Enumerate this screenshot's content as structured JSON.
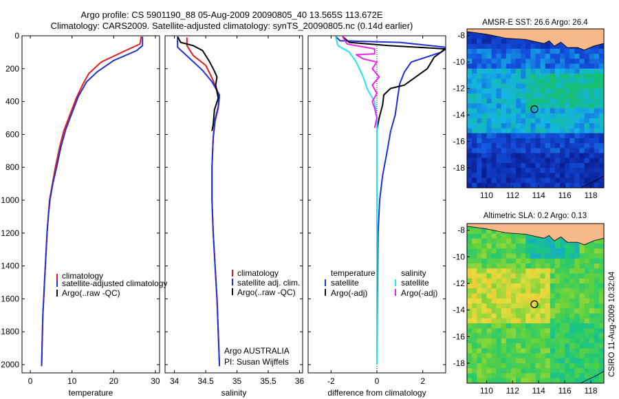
{
  "header": {
    "line1": "Argo profile: CS 5901190_88 05-Aug-2009 20090805_40 13.565S 113.672E",
    "line2": "Climatology: CARS2009. Satellite-adjusted climatology: synTS_20090805.nc (0.14d earlier)"
  },
  "footer": {
    "credit": "CSIRO 11-Aug-2009 10:32:04",
    "argo_country": "Argo AUSTRALIA",
    "pi": "PI: Susan Wijffels"
  },
  "colors": {
    "climatology": "#e41a1c",
    "satellite": "#1c2fd8",
    "argo": "#000000",
    "sat_salinity": "#22e4ee",
    "argo_adj_salinity": "#ee22ee",
    "land": "#f7b98a"
  },
  "chart_data": [
    {
      "type": "line",
      "id": "temperature",
      "xlabel": "temperature",
      "ylabel": "",
      "xlim": [
        -2,
        31
      ],
      "ylim": [
        2050,
        0
      ],
      "xticks": [
        "0",
        "10",
        "20",
        "30"
      ],
      "yticks": [
        "0",
        "200",
        "400",
        "600",
        "800",
        "1000",
        "1200",
        "1400",
        "1600",
        "1800",
        "2000"
      ],
      "legend": [
        "climatology",
        "satellite-adjusted climatology",
        "Argo(..raw -QC)"
      ],
      "series": [
        {
          "name": "climatology",
          "color": "climatology",
          "points": [
            [
              26.6,
              5
            ],
            [
              26.3,
              50
            ],
            [
              22,
              100
            ],
            [
              17,
              160
            ],
            [
              14,
              230
            ],
            [
              12.5,
              300
            ],
            [
              11,
              380
            ],
            [
              9.5,
              480
            ],
            [
              8,
              580
            ],
            [
              7,
              680
            ],
            [
              6,
              800
            ],
            [
              5.3,
              900
            ],
            [
              4.6,
              1000
            ],
            [
              4.3,
              1100
            ],
            [
              4,
              1200
            ],
            [
              3.8,
              1300
            ],
            [
              3.6,
              1400
            ],
            [
              3.4,
              1500
            ],
            [
              3.2,
              1600
            ],
            [
              3,
              1700
            ],
            [
              2.9,
              1800
            ],
            [
              2.8,
              1900
            ],
            [
              2.7,
              2000
            ]
          ]
        },
        {
          "name": "satellite-adjusted climatology",
          "color": "satellite",
          "points": [
            [
              26.9,
              5
            ],
            [
              26.9,
              60
            ],
            [
              25.5,
              90
            ],
            [
              20,
              150
            ],
            [
              16,
              220
            ],
            [
              13.5,
              280
            ],
            [
              11.5,
              370
            ],
            [
              10,
              470
            ],
            [
              8.5,
              570
            ],
            [
              7.3,
              680
            ],
            [
              6.3,
              800
            ],
            [
              5.4,
              900
            ],
            [
              4.7,
              1000
            ],
            [
              4.3,
              1100
            ],
            [
              4,
              1200
            ],
            [
              3.8,
              1300
            ],
            [
              3.6,
              1400
            ],
            [
              3.4,
              1500
            ],
            [
              3.2,
              1600
            ],
            [
              3,
              1700
            ],
            [
              2.9,
              1800
            ],
            [
              2.8,
              1900
            ],
            [
              2.7,
              2010
            ]
          ]
        }
      ]
    },
    {
      "type": "line",
      "id": "salinity",
      "xlabel": "salinity",
      "ylabel": "",
      "xlim": [
        33.85,
        36.05
      ],
      "ylim": [
        2050,
        0
      ],
      "xticks": [
        "34",
        "34.5",
        "35",
        "35.5",
        "36"
      ],
      "yticks": [],
      "legend": [
        "climatology",
        "satellite adj. clim.",
        "Argo(..raw -QC)"
      ],
      "series": [
        {
          "name": "climatology",
          "color": "climatology",
          "points": [
            [
              34.2,
              10
            ],
            [
              34.2,
              60
            ],
            [
              34.3,
              120
            ],
            [
              34.5,
              180
            ],
            [
              34.58,
              240
            ],
            [
              34.65,
              300
            ],
            [
              34.72,
              370
            ],
            [
              34.7,
              440
            ],
            [
              34.65,
              520
            ],
            [
              34.62,
              620
            ],
            [
              34.6,
              800
            ],
            [
              34.6,
              1000
            ],
            [
              34.62,
              1200
            ],
            [
              34.65,
              1400
            ],
            [
              34.68,
              1600
            ],
            [
              34.7,
              1800
            ],
            [
              34.72,
              2000
            ]
          ]
        },
        {
          "name": "satellite adj. clim.",
          "color": "satellite",
          "points": [
            [
              34.05,
              10
            ],
            [
              34.05,
              70
            ],
            [
              34.25,
              140
            ],
            [
              34.45,
              210
            ],
            [
              34.6,
              280
            ],
            [
              34.72,
              360
            ],
            [
              34.7,
              430
            ],
            [
              34.65,
              510
            ],
            [
              34.62,
              620
            ],
            [
              34.6,
              800
            ],
            [
              34.6,
              1000
            ],
            [
              34.62,
              1200
            ],
            [
              34.65,
              1400
            ],
            [
              34.68,
              1600
            ],
            [
              34.7,
              1800
            ],
            [
              34.72,
              2010
            ]
          ]
        },
        {
          "name": "Argo(..raw -QC)",
          "color": "argo",
          "points": [
            [
              34.05,
              5
            ],
            [
              34.1,
              40
            ],
            [
              34.3,
              60
            ],
            [
              34.45,
              90
            ],
            [
              34.55,
              150
            ],
            [
              34.62,
              200
            ],
            [
              34.68,
              250
            ],
            [
              34.66,
              300
            ],
            [
              34.7,
              380
            ],
            [
              34.64,
              450
            ],
            [
              34.62,
              540
            ],
            [
              34.6,
              580
            ]
          ]
        }
      ]
    },
    {
      "type": "line",
      "id": "difference",
      "xlabel": "difference from climatology",
      "ylabel": "",
      "xlim": [
        -3,
        3
      ],
      "ylim": [
        2050,
        0
      ],
      "xticks": [
        "-2",
        "0",
        "2"
      ],
      "yticks": [],
      "legend_left_title": "temperature",
      "legend_right_title": "salinity",
      "legend": [
        "satellite",
        "Argo(-adj)",
        "satellite",
        "Argo(-adj)"
      ],
      "series": [
        {
          "name": "temperature satellite",
          "color": "satellite",
          "points": [
            [
              -1.8,
              5
            ],
            [
              -1.6,
              30
            ],
            [
              1,
              40
            ],
            [
              3,
              70
            ],
            [
              2.8,
              100
            ],
            [
              1.5,
              160
            ],
            [
              1.2,
              220
            ],
            [
              1,
              290
            ],
            [
              0.9,
              380
            ],
            [
              0.8,
              480
            ],
            [
              0.6,
              580
            ],
            [
              0.45,
              700
            ],
            [
              0.25,
              850
            ],
            [
              0.12,
              1000
            ],
            [
              0.05,
              1200
            ],
            [
              0.02,
              1600
            ],
            [
              0,
              2000
            ]
          ]
        },
        {
          "name": "temperature Argo(-adj)",
          "color": "argo",
          "points": [
            [
              -1.5,
              5
            ],
            [
              -1.2,
              40
            ],
            [
              0.5,
              60
            ],
            [
              3,
              80
            ],
            [
              2.5,
              130
            ],
            [
              2.2,
              200
            ],
            [
              1.2,
              300
            ],
            [
              0.6,
              320
            ],
            [
              0.3,
              360
            ],
            [
              0.25,
              420
            ],
            [
              0.1,
              500
            ],
            [
              0,
              570
            ]
          ]
        },
        {
          "name": "salinity satellite",
          "color": "sat_salinity",
          "points": [
            [
              -1.8,
              5
            ],
            [
              -1.7,
              60
            ],
            [
              -1.2,
              100
            ],
            [
              -0.9,
              160
            ],
            [
              -0.6,
              250
            ],
            [
              -0.4,
              330
            ],
            [
              -0.1,
              400
            ],
            [
              0,
              500
            ],
            [
              0,
              800
            ],
            [
              0,
              2000
            ]
          ]
        },
        {
          "name": "salinity Argo(-adj)",
          "color": "argo_adj_salinity",
          "points": [
            [
              -1.5,
              5
            ],
            [
              -1.3,
              50
            ],
            [
              -0.1,
              80
            ],
            [
              -0.1,
              110
            ],
            [
              -0.9,
              115
            ],
            [
              -0.6,
              140
            ],
            [
              0,
              160
            ],
            [
              -0.2,
              200
            ],
            [
              0.1,
              250
            ],
            [
              -0.2,
              300
            ],
            [
              0,
              350
            ],
            [
              -0.2,
              400
            ],
            [
              -0.1,
              440
            ],
            [
              0,
              500
            ],
            [
              -0.1,
              560
            ]
          ]
        }
      ]
    },
    {
      "type": "heatmap",
      "id": "sst",
      "title": "AMSR-E SST: 26.6 Argo: 26.4",
      "xlabel": "",
      "ylabel": "",
      "xlim": [
        108.5,
        119
      ],
      "ylim": [
        -19.5,
        -7.5
      ],
      "xticks": [
        "110",
        "112",
        "114",
        "116",
        "118"
      ],
      "yticks": [
        "-8",
        "-10",
        "-12",
        "-14",
        "-16",
        "-18"
      ],
      "marker": {
        "lon": 113.672,
        "lat": -13.565
      }
    },
    {
      "type": "heatmap",
      "id": "sla",
      "title": "Altimetric SLA: 0.2 Argo: 0.13",
      "xlabel": "",
      "ylabel": "",
      "xlim": [
        108.5,
        119
      ],
      "ylim": [
        -19.5,
        -7.5
      ],
      "xticks": [
        "110",
        "112",
        "114",
        "116",
        "118"
      ],
      "yticks": [
        "-8",
        "-10",
        "-12",
        "-14",
        "-16",
        "-18"
      ],
      "marker": {
        "lon": 113.672,
        "lat": -13.565
      }
    }
  ]
}
